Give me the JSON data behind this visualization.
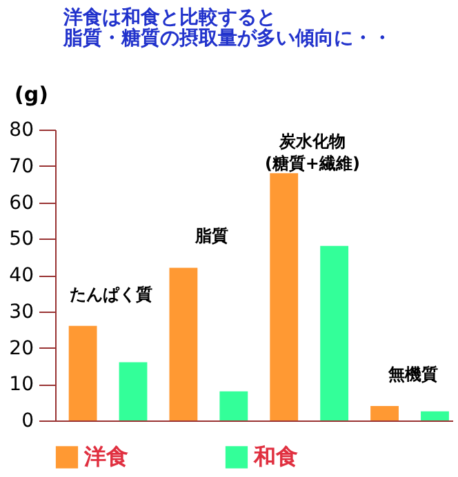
{
  "chart_data": {
    "type": "bar",
    "title": "洋食は和食と比較すると",
    "subtitle": "脂質・糖質の摂取量が多い傾向に・・",
    "ylabel": "(g)",
    "categories": [
      "たんぱく質",
      "脂質",
      "炭水化物\n(糖質+繊維)",
      "無機質"
    ],
    "series": [
      {
        "name": "洋食",
        "color": "#ff9933",
        "values": [
          26,
          42,
          68,
          4
        ]
      },
      {
        "name": "和食",
        "color": "#33ff99",
        "values": [
          16,
          8,
          48,
          2.5
        ]
      }
    ],
    "ylim": [
      0,
      80
    ],
    "yticks": [
      0,
      10,
      20,
      30,
      40,
      50,
      60,
      70,
      80
    ],
    "grid": false,
    "legend": "bottom"
  }
}
